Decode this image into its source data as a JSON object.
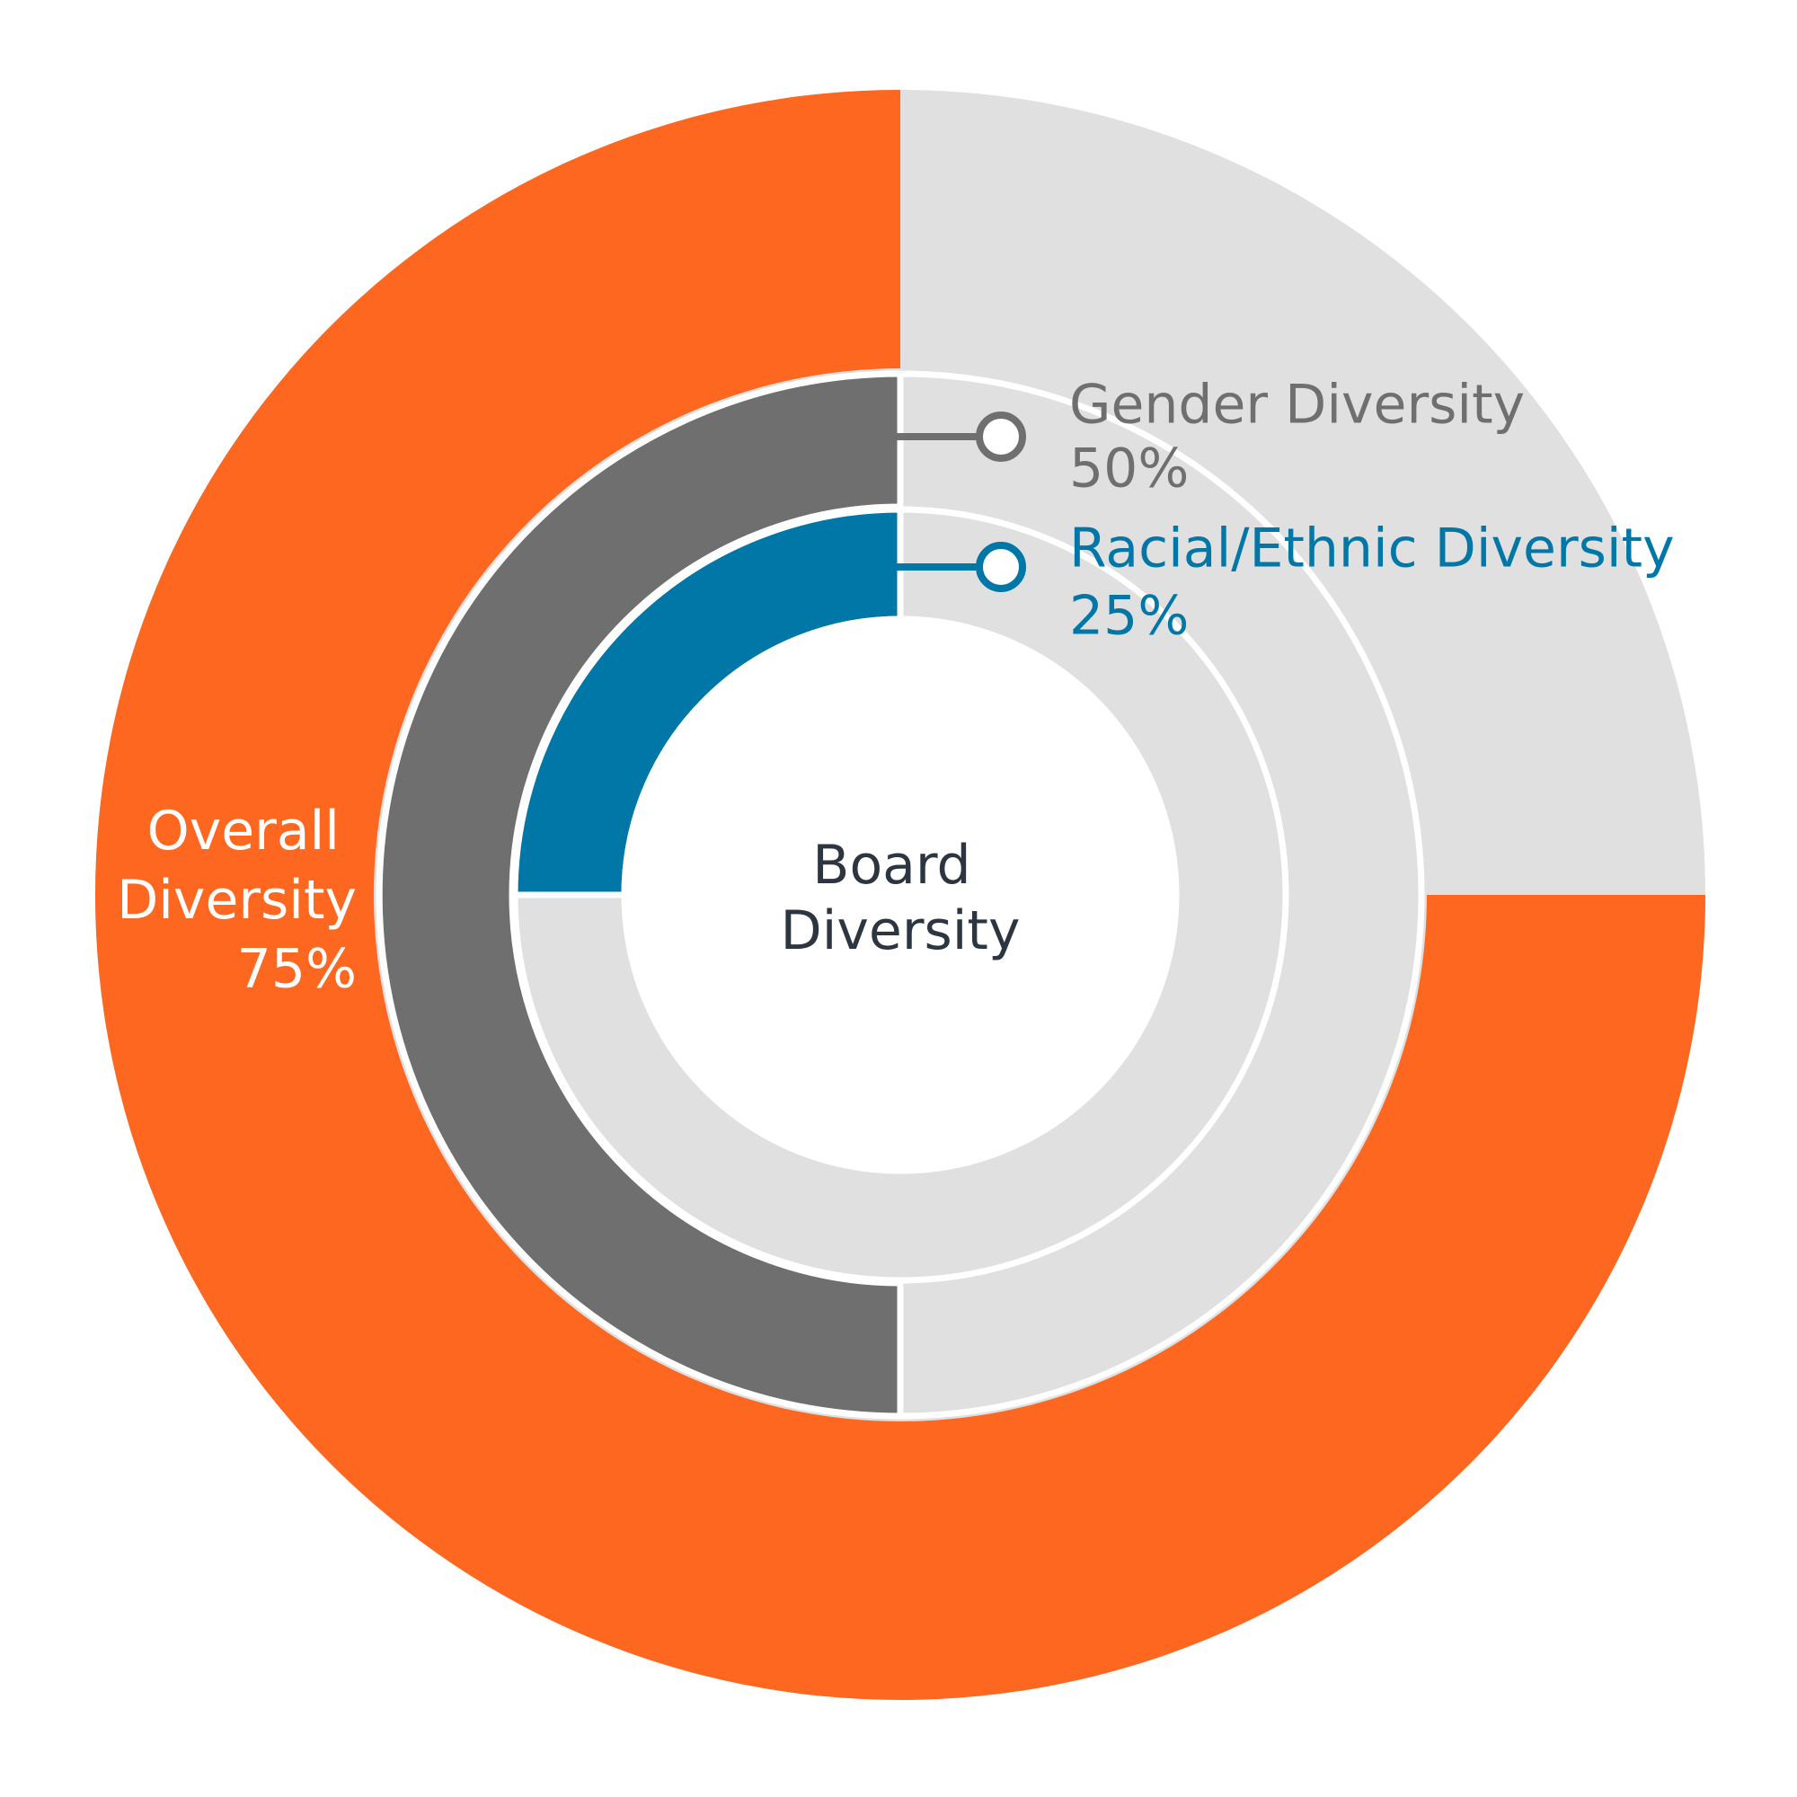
{
  "chart_data": {
    "type": "donut",
    "title": "Board Diversity",
    "track_color": "#e0e0e0",
    "series": [
      {
        "name": "Overall Diversity",
        "color": "#fd6720",
        "values": [
          75
        ],
        "value_labels": [
          "75%"
        ]
      },
      {
        "name": "Gender Diversity",
        "color": "#6f6f6f",
        "values": [
          50
        ],
        "value_labels": [
          "50%"
        ]
      },
      {
        "name": "Racial/Ethnic Diversity",
        "color": "#0077a6",
        "values": [
          25
        ],
        "value_labels": [
          "25%"
        ]
      }
    ]
  }
}
